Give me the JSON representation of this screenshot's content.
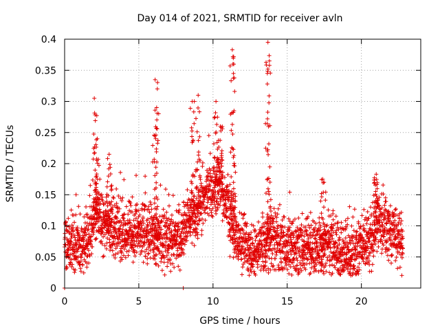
{
  "chart_data": {
    "type": "scatter",
    "title": "Day 014 of 2021, SRMTID for receiver avln",
    "xlabel": "GPS time / hours",
    "ylabel": "SRMTID / TECUs",
    "xlim": [
      0,
      24
    ],
    "ylim": [
      0,
      0.4
    ],
    "x_ticks": [
      0,
      5,
      10,
      15,
      20
    ],
    "x_tick_labels": [
      "0",
      "5",
      "10",
      "15",
      "20"
    ],
    "y_ticks": [
      0,
      0.05,
      0.1,
      0.15,
      0.2,
      0.25,
      0.3,
      0.35,
      0.4
    ],
    "y_tick_labels": [
      "0",
      "0.05",
      "0.1",
      "0.15",
      "0.2",
      "0.25",
      "0.3",
      "0.35",
      "0.4"
    ],
    "grid": true,
    "marker": "+",
    "series": [
      {
        "name": "SRMTID",
        "color": "#e00000",
        "x_range": [
          0,
          22.8
        ],
        "baseline_profile": [
          [
            0.0,
            0.07
          ],
          [
            1.0,
            0.065
          ],
          [
            1.8,
            0.09
          ],
          [
            2.1,
            0.12
          ],
          [
            3.0,
            0.1
          ],
          [
            4.0,
            0.09
          ],
          [
            5.0,
            0.095
          ],
          [
            6.0,
            0.08
          ],
          [
            7.5,
            0.075
          ],
          [
            8.5,
            0.11
          ],
          [
            9.5,
            0.15
          ],
          [
            10.5,
            0.17
          ],
          [
            11.0,
            0.12
          ],
          [
            11.5,
            0.08
          ],
          [
            12.5,
            0.055
          ],
          [
            13.5,
            0.07
          ],
          [
            14.2,
            0.075
          ],
          [
            15.0,
            0.07
          ],
          [
            16.5,
            0.065
          ],
          [
            17.3,
            0.06
          ],
          [
            18.0,
            0.08
          ],
          [
            18.5,
            0.06
          ],
          [
            19.5,
            0.055
          ],
          [
            20.5,
            0.07
          ],
          [
            21.0,
            0.11
          ],
          [
            21.5,
            0.095
          ],
          [
            22.8,
            0.07
          ]
        ],
        "bursts": [
          {
            "x": 2.0,
            "peak": 0.305
          },
          {
            "x": 2.2,
            "peak": 0.24
          },
          {
            "x": 3.0,
            "peak": 0.215
          },
          {
            "x": 6.1,
            "peak": 0.335
          },
          {
            "x": 6.2,
            "peak": 0.29
          },
          {
            "x": 8.6,
            "peak": 0.3
          },
          {
            "x": 9.0,
            "peak": 0.31
          },
          {
            "x": 10.2,
            "peak": 0.3
          },
          {
            "x": 10.5,
            "peak": 0.26
          },
          {
            "x": 11.3,
            "peak": 0.383
          },
          {
            "x": 11.4,
            "peak": 0.36
          },
          {
            "x": 13.7,
            "peak": 0.395
          },
          {
            "x": 13.8,
            "peak": 0.365
          },
          {
            "x": 17.4,
            "peak": 0.175
          },
          {
            "x": 21.0,
            "peak": 0.183
          }
        ],
        "approx_points": 2900,
        "outliers": [
          [
            0.0,
            0.0
          ],
          [
            8.0,
            0.0
          ]
        ]
      }
    ]
  }
}
